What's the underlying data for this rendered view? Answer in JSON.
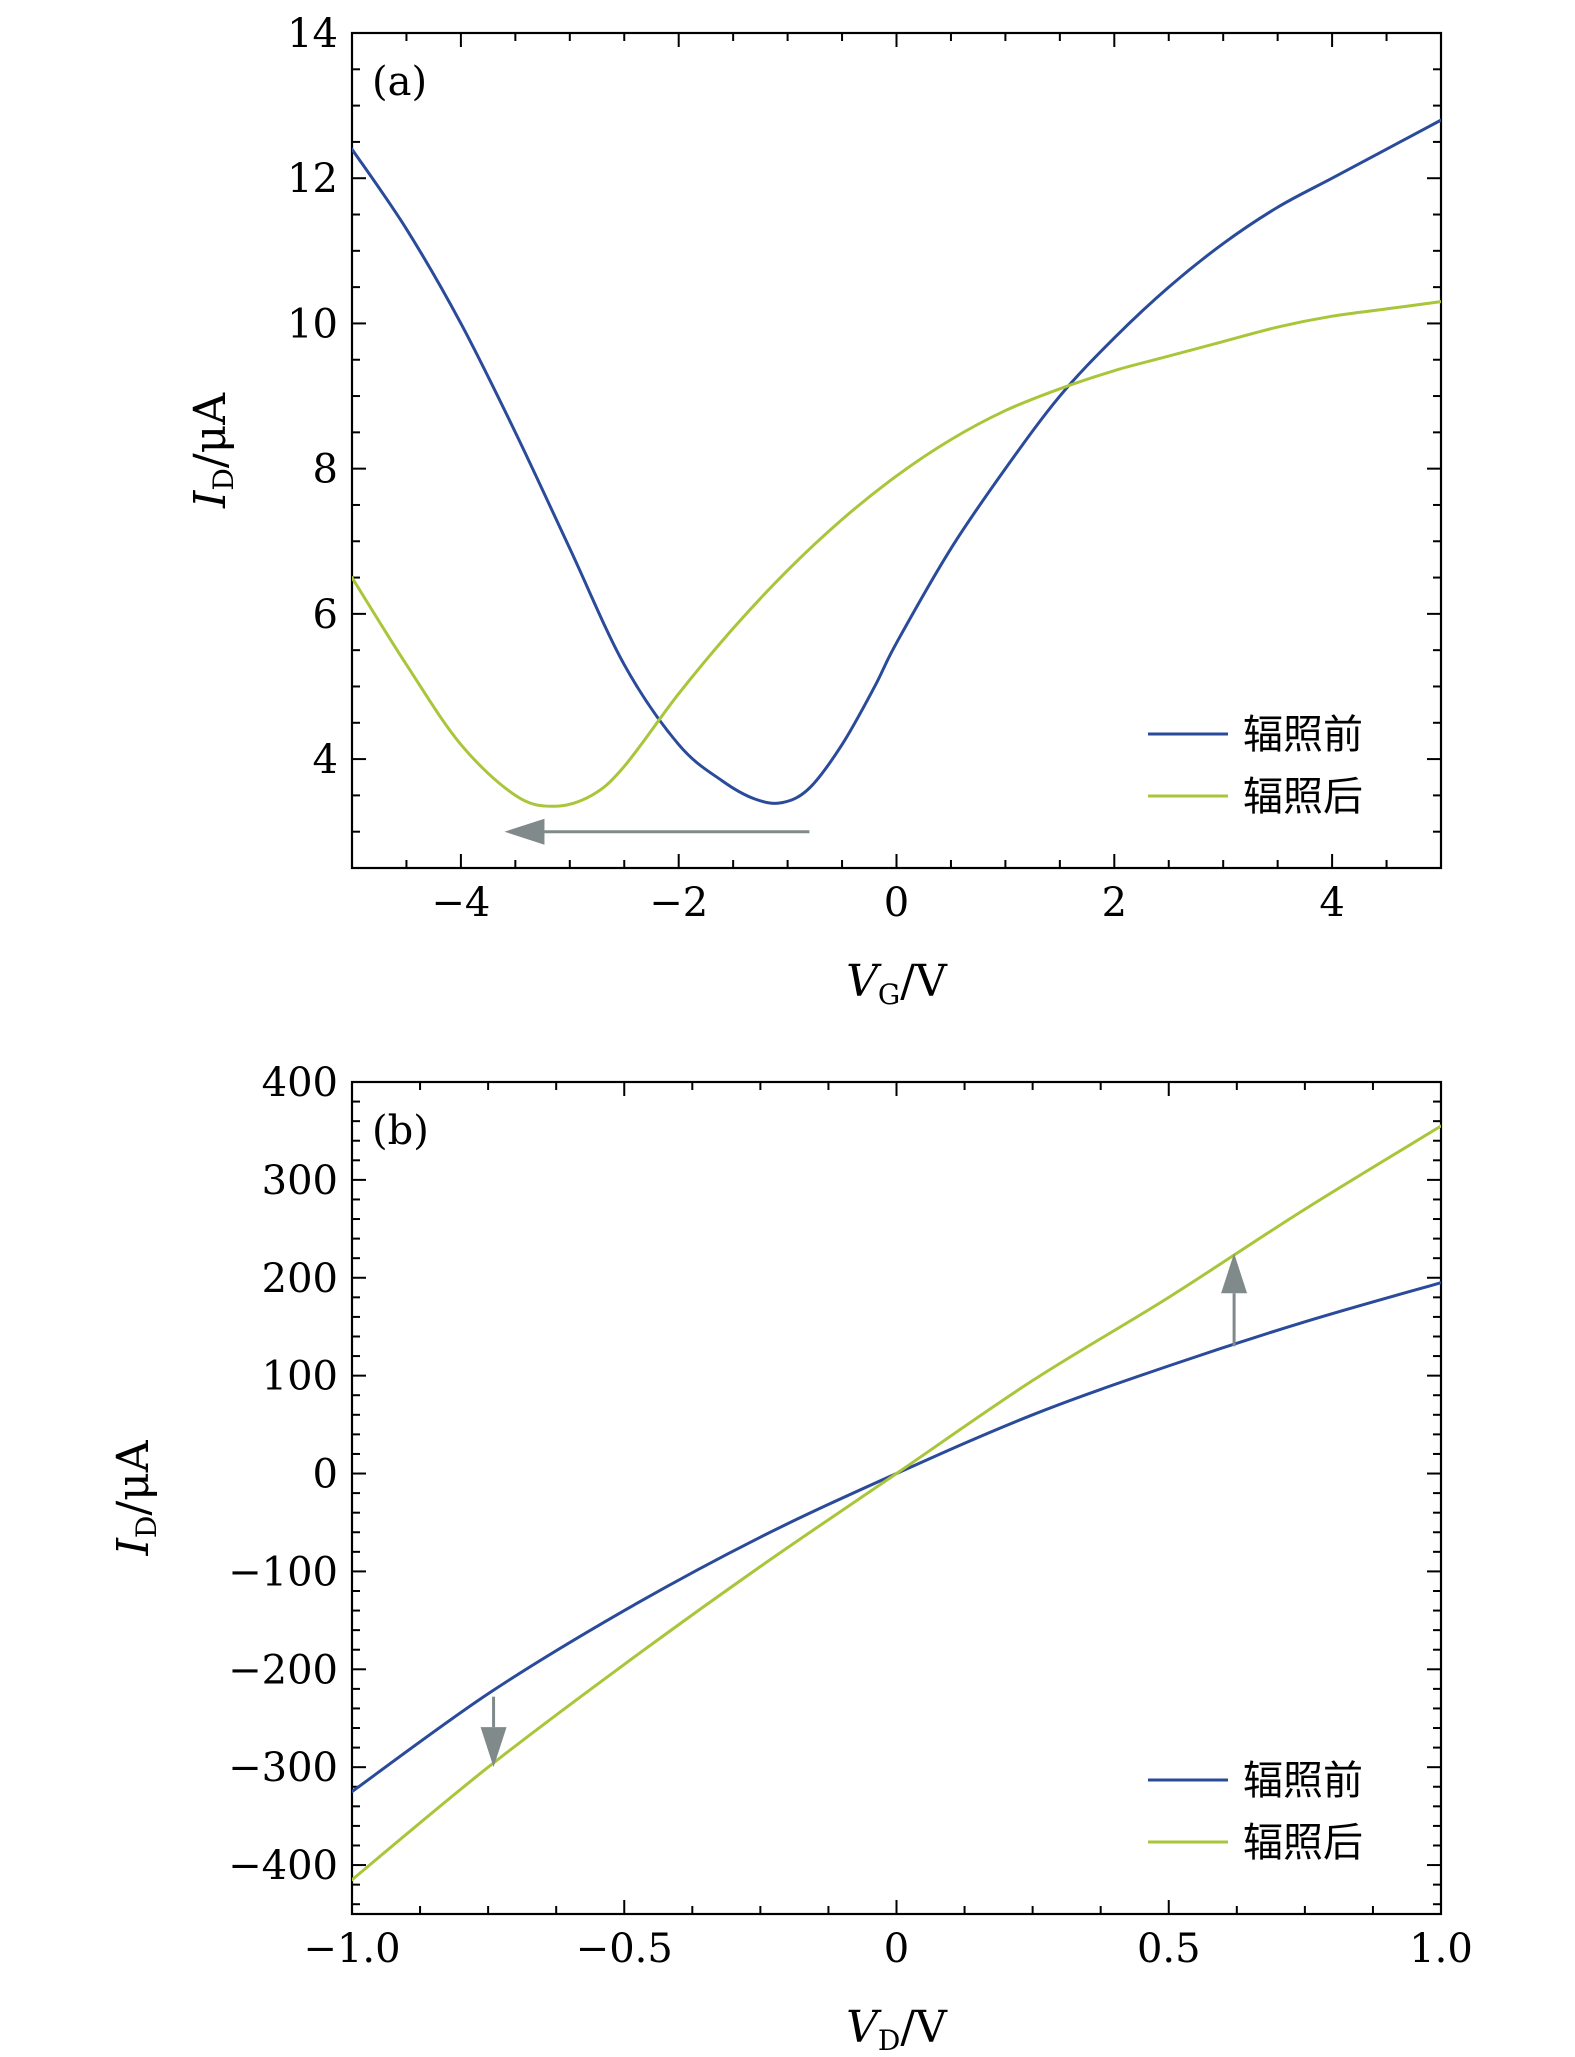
{
  "chart_data": [
    {
      "type": "line",
      "panel_label": "(a)",
      "xlabel_var": "V",
      "xlabel_sub": "G",
      "xlabel_unit": "/V",
      "ylabel_var": "I",
      "ylabel_sub": "D",
      "ylabel_unit": "/μA",
      "xlim": [
        -5,
        5
      ],
      "ylim": [
        2.5,
        14
      ],
      "xticks": [
        -4,
        -2,
        0,
        2,
        4
      ],
      "xtick_labels": [
        "−4",
        "−2",
        "0",
        "2",
        "4"
      ],
      "yticks": [
        4,
        6,
        8,
        10,
        12,
        14
      ],
      "ytick_labels": [
        "4",
        "6",
        "8",
        "10",
        "12",
        "14"
      ],
      "legend_position": "bottom-right",
      "series": [
        {
          "name": "辐照前",
          "color": "#2a4a9a",
          "x": [
            -5,
            -4.5,
            -4,
            -3.5,
            -3,
            -2.5,
            -2,
            -1.6,
            -1.3,
            -1.05,
            -0.8,
            -0.5,
            -0.2,
            0,
            0.5,
            1,
            1.5,
            2,
            2.5,
            3,
            3.5,
            4,
            4.5,
            5
          ],
          "y": [
            12.4,
            11.3,
            10.0,
            8.5,
            6.9,
            5.3,
            4.2,
            3.7,
            3.45,
            3.4,
            3.6,
            4.2,
            5.0,
            5.6,
            6.9,
            8.0,
            9.0,
            9.8,
            10.5,
            11.1,
            11.6,
            12.0,
            12.4,
            12.8
          ]
        },
        {
          "name": "辐照后",
          "color": "#a9c63a",
          "x": [
            -5,
            -4.5,
            -4,
            -3.5,
            -3.15,
            -2.8,
            -2.5,
            -2,
            -1.5,
            -1,
            -0.5,
            0,
            0.5,
            1,
            1.5,
            2,
            2.5,
            3,
            3.5,
            4,
            4.5,
            5
          ],
          "y": [
            6.5,
            5.3,
            4.2,
            3.5,
            3.35,
            3.5,
            3.9,
            4.9,
            5.8,
            6.6,
            7.3,
            7.9,
            8.4,
            8.8,
            9.1,
            9.35,
            9.55,
            9.75,
            9.95,
            10.1,
            10.2,
            10.3
          ]
        }
      ],
      "annotations": [
        {
          "type": "arrow",
          "from": [
            -0.8,
            3.0
          ],
          "to": [
            -3.6,
            3.0
          ],
          "color": "#808a8a"
        }
      ]
    },
    {
      "type": "line",
      "panel_label": "(b)",
      "xlabel_var": "V",
      "xlabel_sub": "D",
      "xlabel_unit": "/V",
      "ylabel_var": "I",
      "ylabel_sub": "D",
      "ylabel_unit": "/μA",
      "xlim": [
        -1.0,
        1.0
      ],
      "ylim": [
        -450,
        400
      ],
      "xticks": [
        -1.0,
        -0.5,
        0,
        0.5,
        1.0
      ],
      "xtick_labels": [
        "−1.0",
        "−0.5",
        "0",
        "0.5",
        "1.0"
      ],
      "yticks": [
        -400,
        -300,
        -200,
        -100,
        0,
        100,
        200,
        300,
        400
      ],
      "ytick_labels": [
        "−400",
        "−300",
        "−200",
        "−100",
        "0",
        "100",
        "200",
        "300",
        "400"
      ],
      "legend_position": "bottom-right",
      "series": [
        {
          "name": "辐照前",
          "color": "#2a4a9a",
          "x": [
            -1.0,
            -0.75,
            -0.5,
            -0.25,
            0,
            0.25,
            0.5,
            0.75,
            1.0
          ],
          "y": [
            -325,
            -225,
            -140,
            -65,
            0,
            60,
            110,
            155,
            195
          ]
        },
        {
          "name": "辐照后",
          "color": "#a9c63a",
          "x": [
            -1.0,
            -0.75,
            -0.5,
            -0.25,
            0,
            0.25,
            0.5,
            0.75,
            1.0
          ],
          "y": [
            -415,
            -300,
            -195,
            -95,
            0,
            95,
            180,
            270,
            355
          ]
        }
      ],
      "annotations": [
        {
          "type": "arrow",
          "from": [
            -0.74,
            -228
          ],
          "to": [
            -0.74,
            -300
          ],
          "color": "#808a8a"
        },
        {
          "type": "arrow",
          "from": [
            0.62,
            130
          ],
          "to": [
            0.62,
            225
          ],
          "color": "#808a8a"
        }
      ]
    }
  ]
}
